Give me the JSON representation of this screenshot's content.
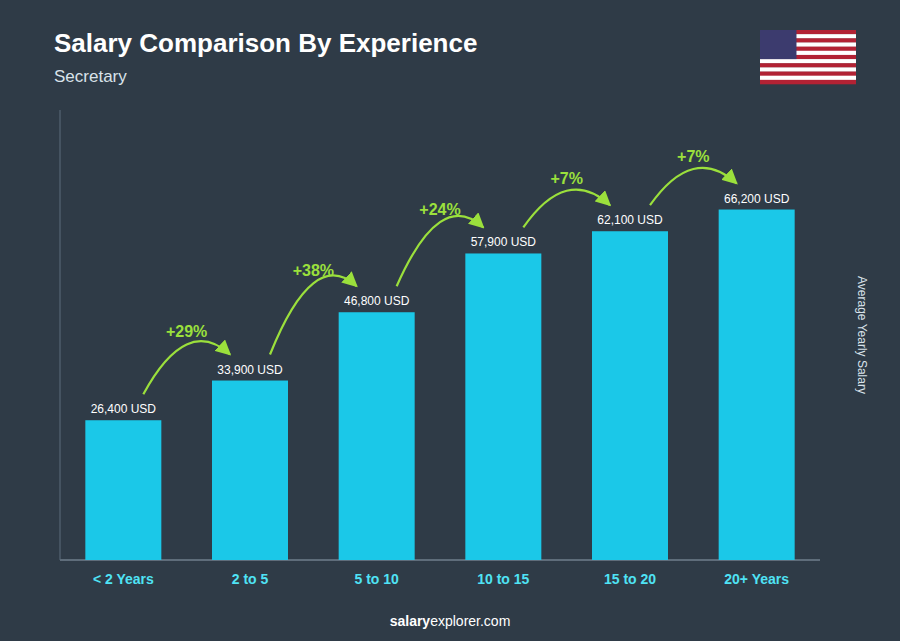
{
  "chart_data": {
    "type": "bar",
    "title": "Salary Comparison By Experience",
    "subtitle": "Secretary",
    "ylabel": "Average Yearly Salary",
    "categories": [
      "< 2 Years",
      "2 to 5",
      "5 to 10",
      "10 to 15",
      "15 to 20",
      "20+ Years"
    ],
    "values": [
      26400,
      33900,
      46800,
      57900,
      62100,
      66200
    ],
    "value_labels": [
      "26,400 USD",
      "33,900 USD",
      "46,800 USD",
      "57,900 USD",
      "62,100 USD",
      "66,200 USD"
    ],
    "data_labels": true,
    "annotations": [
      "+29%",
      "+38%",
      "+24%",
      "+7%",
      "+7%"
    ],
    "footer": [
      "salary",
      "explorer.com"
    ],
    "color": "#1BC8E8",
    "ylim": [
      0,
      85000
    ],
    "grid": false,
    "tick_labels": "x"
  }
}
